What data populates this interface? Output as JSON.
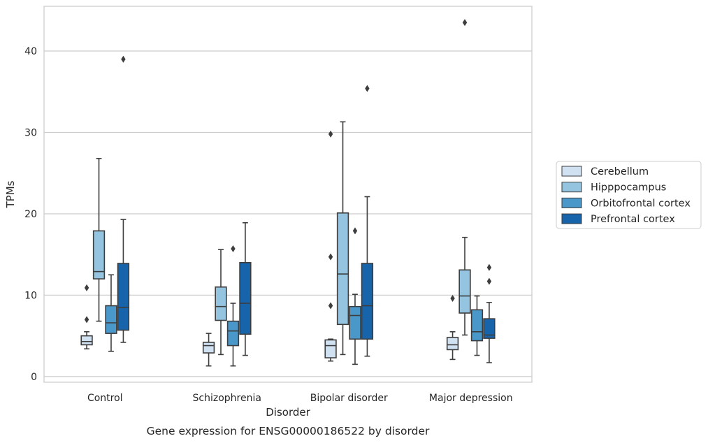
{
  "chart_data": {
    "type": "box",
    "caption": "Gene expression for ENSG00000186522 by disorder",
    "xlabel": "Disorder",
    "ylabel": "TPMs",
    "ylim": [
      -0.7,
      45.5
    ],
    "yticks": [
      0,
      10,
      20,
      30,
      40
    ],
    "grid": "horizontal",
    "legend_position": "right",
    "categories": [
      "Control",
      "Schizophrenia",
      "Bipolar disorder",
      "Major depression"
    ],
    "series": [
      {
        "name": "Cerebellum",
        "color": "#d0e1f2",
        "boxes": [
          {
            "whislo": 3.4,
            "q1": 3.9,
            "med": 4.3,
            "q3": 5.0,
            "whishi": 5.5,
            "fliers": [
              10.9,
              7.0
            ]
          },
          {
            "whislo": 1.3,
            "q1": 2.9,
            "med": 3.8,
            "q3": 4.2,
            "whishi": 5.3,
            "fliers": []
          },
          {
            "whislo": 1.9,
            "q1": 2.3,
            "med": 3.8,
            "q3": 4.5,
            "whishi": 4.6,
            "fliers": [
              29.8,
              14.7,
              8.7
            ]
          },
          {
            "whislo": 2.1,
            "q1": 3.3,
            "med": 3.9,
            "q3": 4.8,
            "whishi": 5.5,
            "fliers": [
              9.6
            ]
          }
        ]
      },
      {
        "name": "Hipppocampus",
        "color": "#94c4df",
        "boxes": [
          {
            "whislo": 6.8,
            "q1": 12.0,
            "med": 12.9,
            "q3": 17.9,
            "whishi": 26.8,
            "fliers": []
          },
          {
            "whislo": 2.7,
            "q1": 6.9,
            "med": 8.6,
            "q3": 11.0,
            "whishi": 15.6,
            "fliers": []
          },
          {
            "whislo": 2.7,
            "q1": 6.4,
            "med": 12.6,
            "q3": 20.1,
            "whishi": 31.3,
            "fliers": []
          },
          {
            "whislo": 5.1,
            "q1": 7.8,
            "med": 9.9,
            "q3": 13.1,
            "whishi": 17.1,
            "fliers": [
              43.5
            ]
          }
        ]
      },
      {
        "name": "Orbitofrontal cortex",
        "color": "#4a98c9",
        "boxes": [
          {
            "whislo": 3.1,
            "q1": 5.3,
            "med": 6.6,
            "q3": 8.7,
            "whishi": 12.5,
            "fliers": []
          },
          {
            "whislo": 1.3,
            "q1": 3.8,
            "med": 5.6,
            "q3": 6.8,
            "whishi": 9.0,
            "fliers": [
              15.7
            ]
          },
          {
            "whislo": 1.5,
            "q1": 4.6,
            "med": 7.5,
            "q3": 8.6,
            "whishi": 10.1,
            "fliers": [
              17.9
            ]
          },
          {
            "whislo": 2.6,
            "q1": 4.4,
            "med": 5.5,
            "q3": 8.2,
            "whishi": 9.9,
            "fliers": []
          }
        ]
      },
      {
        "name": "Prefrontal cortex",
        "color": "#1764ab",
        "boxes": [
          {
            "whislo": 4.2,
            "q1": 5.7,
            "med": 8.5,
            "q3": 13.9,
            "whishi": 19.3,
            "fliers": [
              39.0
            ]
          },
          {
            "whislo": 2.6,
            "q1": 5.2,
            "med": 9.0,
            "q3": 14.0,
            "whishi": 18.9,
            "fliers": []
          },
          {
            "whislo": 2.5,
            "q1": 4.6,
            "med": 8.7,
            "q3": 13.9,
            "whishi": 22.1,
            "fliers": [
              35.4
            ]
          },
          {
            "whislo": 1.7,
            "q1": 4.7,
            "med": 5.1,
            "q3": 7.1,
            "whishi": 9.1,
            "fliers": [
              13.4,
              11.7
            ]
          }
        ]
      }
    ]
  }
}
